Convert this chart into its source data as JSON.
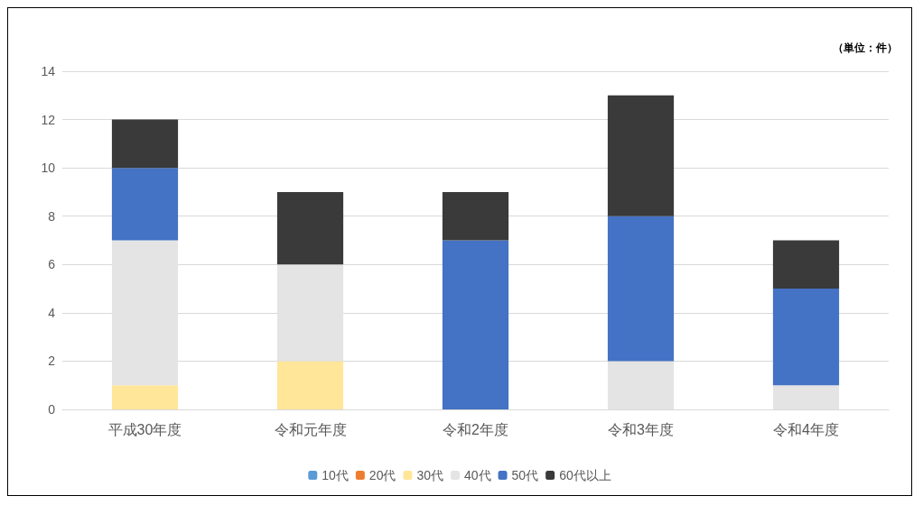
{
  "chart_data": {
    "type": "bar",
    "stacked": true,
    "categories": [
      "平成30年度",
      "令和元年度",
      "令和2年度",
      "令和3年度",
      "令和4年度"
    ],
    "series": [
      {
        "name": "10代",
        "color": "#5b9bd5",
        "values": [
          0,
          0,
          0,
          0,
          0
        ]
      },
      {
        "name": "20代",
        "color": "#ed7d31",
        "values": [
          0,
          0,
          0,
          0,
          0
        ]
      },
      {
        "name": "30代",
        "color": "#ffe699",
        "values": [
          1,
          2,
          0,
          0,
          0
        ]
      },
      {
        "name": "40代",
        "color": "#e4e4e4",
        "values": [
          6,
          4,
          0,
          2,
          1
        ]
      },
      {
        "name": "50代",
        "color": "#4472c4",
        "values": [
          3,
          0,
          7,
          6,
          4
        ]
      },
      {
        "name": "60代以上",
        "color": "#3a3a3a",
        "values": [
          2,
          3,
          2,
          5,
          2
        ]
      }
    ],
    "ylim": [
      0,
      14
    ],
    "yticks": [
      0,
      2,
      4,
      6,
      8,
      10,
      12,
      14
    ],
    "grid": "y",
    "legend": "bottom",
    "annotations": [
      "（単位：件）"
    ]
  }
}
